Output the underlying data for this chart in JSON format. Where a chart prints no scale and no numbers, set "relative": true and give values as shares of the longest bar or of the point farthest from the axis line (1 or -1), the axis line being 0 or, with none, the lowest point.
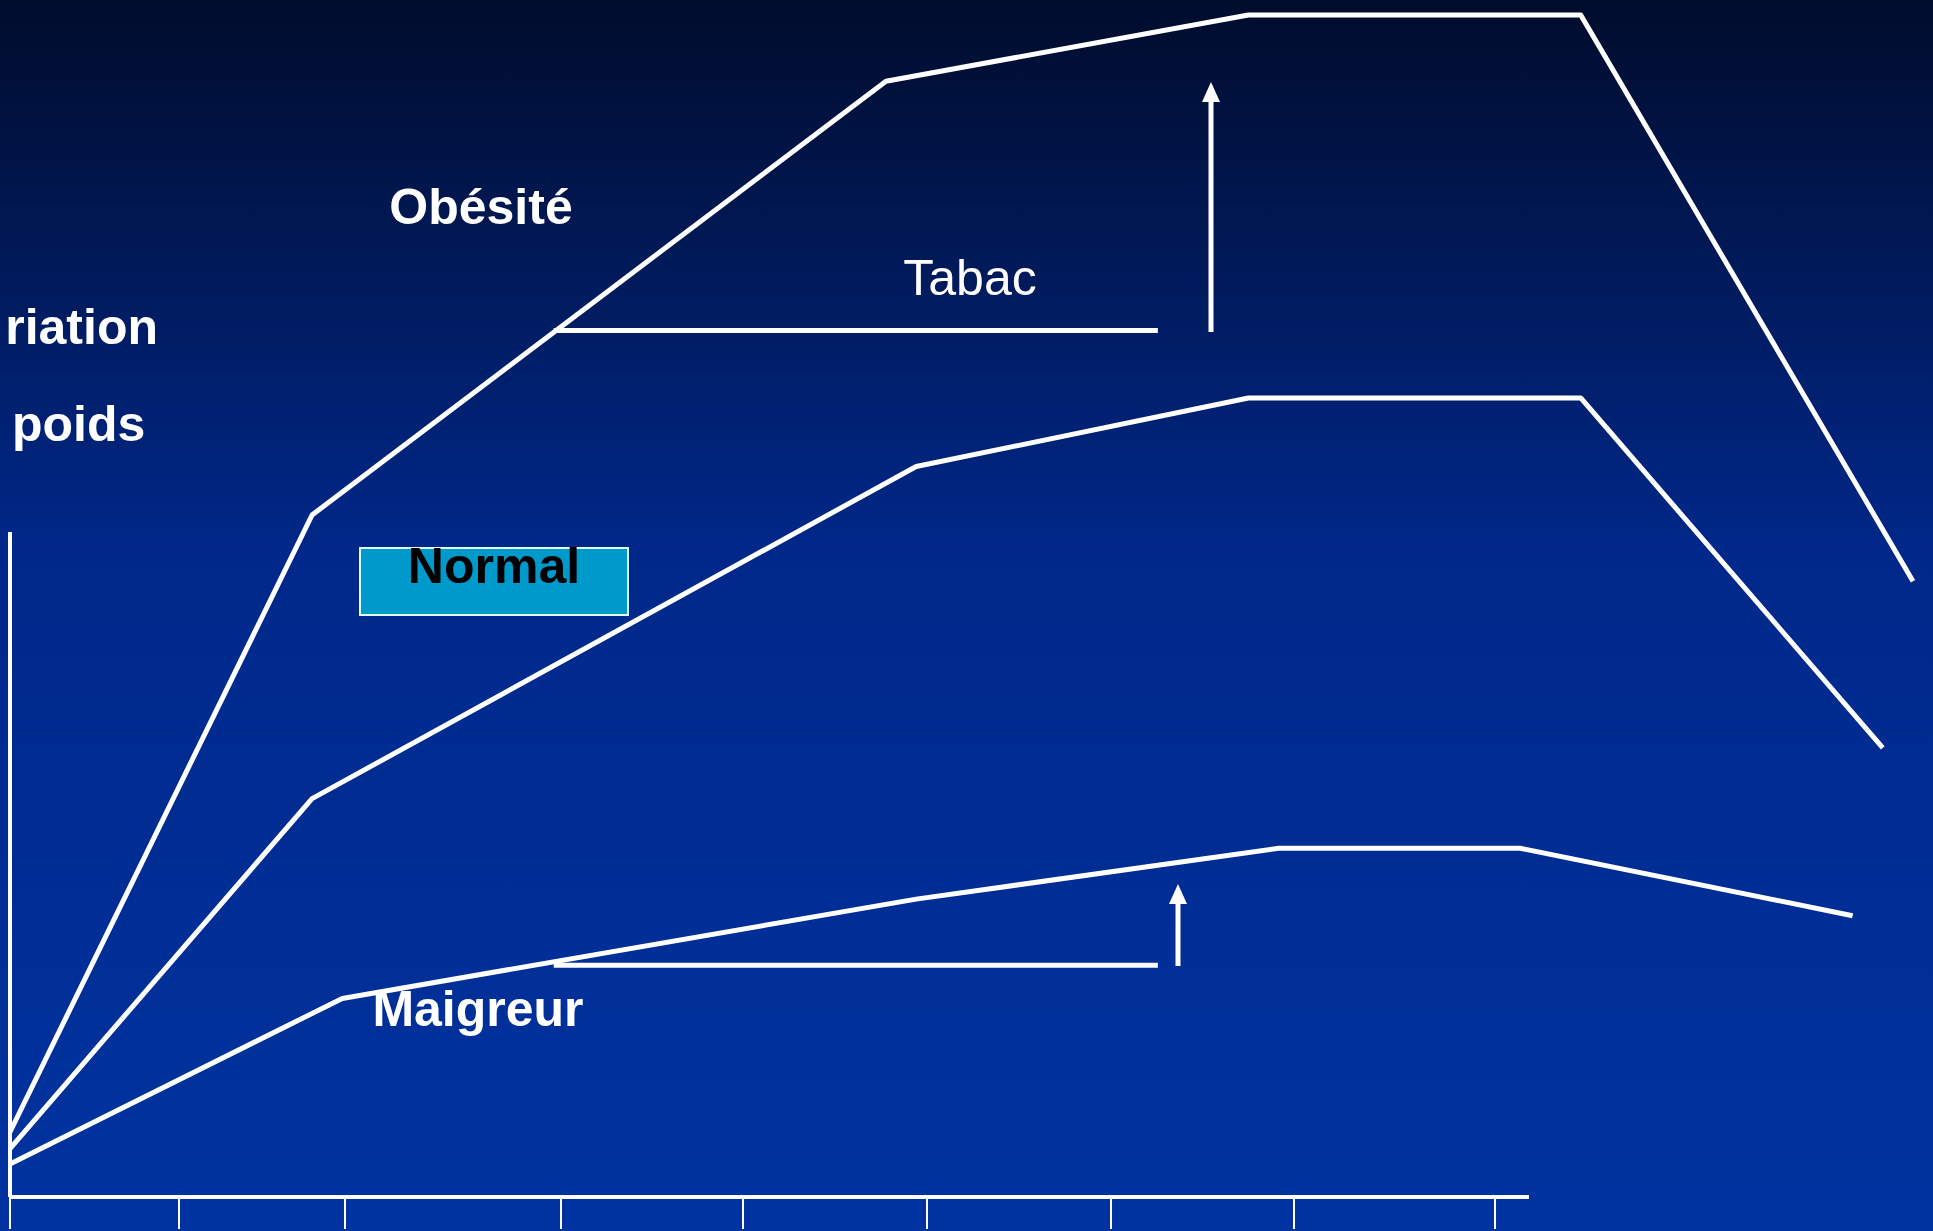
{
  "chart_data": {
    "type": "line",
    "relative": true,
    "ylabel": "riation\npoids",
    "line_style": "solid",
    "categories": [
      null,
      null,
      null,
      null,
      null,
      null,
      null,
      null,
      null,
      null,
      null,
      null,
      null,
      null,
      null,
      null,
      null,
      null,
      null,
      null,
      null,
      null,
      null,
      null,
      null,
      null,
      null,
      null,
      null,
      null,
      null,
      null,
      null,
      null,
      null,
      null,
      null,
      null,
      null,
      null,
      null,
      null,
      null,
      null,
      null,
      null,
      null,
      null,
      null,
      null,
      null,
      null,
      null,
      null,
      null,
      null,
      null,
      null,
      null,
      null,
      null,
      null,
      null,
      null
    ],
    "series": [
      {
        "name": "Obésité",
        "color": "#ffffff",
        "values": [
          0.055,
          null,
          null,
          null,
          null,
          null,
          null,
          null,
          null,
          null,
          0.577,
          null,
          null,
          null,
          null,
          null,
          null,
          null,
          null,
          null,
          null,
          null,
          null,
          null,
          null,
          null,
          null,
          null,
          null,
          0.944,
          null,
          null,
          null,
          null,
          null,
          null,
          null,
          null,
          null,
          null,
          null,
          1,
          null,
          null,
          null,
          null,
          null,
          null,
          null,
          null,
          null,
          null,
          1,
          null,
          null,
          null,
          null,
          null,
          null,
          null,
          null,
          null,
          null,
          0.521
        ]
      },
      {
        "name": "Normal",
        "color": "#ffffff",
        "values": [
          0.041,
          null,
          null,
          null,
          null,
          null,
          null,
          null,
          null,
          null,
          0.337,
          null,
          null,
          null,
          null,
          null,
          null,
          null,
          null,
          null,
          null,
          null,
          null,
          null,
          null,
          null,
          null,
          null,
          null,
          null,
          0.618,
          null,
          null,
          null,
          null,
          null,
          null,
          null,
          null,
          null,
          null,
          0.676,
          null,
          null,
          null,
          null,
          null,
          null,
          null,
          null,
          null,
          null,
          0.676,
          null,
          null,
          null,
          null,
          null,
          null,
          null,
          null,
          null,
          0.38,
          null
        ]
      },
      {
        "name": "Maigreur",
        "color": "#ffffff",
        "values": [
          0.028,
          null,
          null,
          null,
          null,
          null,
          null,
          null,
          null,
          null,
          null,
          0.168,
          null,
          null,
          null,
          null,
          null,
          null,
          null,
          null,
          null,
          null,
          null,
          null,
          null,
          null,
          null,
          null,
          null,
          null,
          0.252,
          null,
          null,
          null,
          null,
          null,
          null,
          null,
          null,
          null,
          null,
          null,
          0.295,
          null,
          null,
          null,
          null,
          null,
          null,
          null,
          0.295,
          null,
          null,
          null,
          null,
          null,
          null,
          null,
          null,
          null,
          null,
          0.238,
          null,
          null
        ]
      },
      {
        "color": "#ffffff",
        "values": [
          null,
          null,
          null,
          null,
          null,
          null,
          null,
          null,
          null,
          null,
          null,
          null,
          null,
          null,
          null,
          null,
          null,
          null,
          0.733,
          null,
          null,
          null,
          null,
          null,
          null,
          null,
          null,
          null,
          null,
          null,
          null,
          null,
          null,
          null,
          null,
          null,
          null,
          null,
          0.733,
          null,
          null,
          null,
          null,
          null,
          null,
          null,
          null,
          null,
          null,
          null,
          null,
          null,
          null,
          null,
          null,
          null,
          null,
          null,
          null,
          null,
          null,
          null,
          null,
          null
        ]
      },
      {
        "color": "#ffffff",
        "values": [
          null,
          null,
          null,
          null,
          null,
          null,
          null,
          null,
          null,
          null,
          null,
          null,
          null,
          null,
          null,
          null,
          null,
          null,
          0.196,
          null,
          null,
          null,
          null,
          null,
          null,
          null,
          null,
          null,
          null,
          null,
          null,
          null,
          null,
          null,
          null,
          null,
          null,
          null,
          0.196,
          null,
          null,
          null,
          null,
          null,
          null,
          null,
          null,
          null,
          null,
          null,
          null,
          null,
          null,
          null,
          null,
          null,
          null,
          null,
          null,
          null,
          null,
          null,
          null,
          null
        ]
      }
    ],
    "annotations": [
      "Tabac"
    ],
    "ref_lines": [
      {
        "axis": "y",
        "value": 0,
        "color": "#ffffff"
      }
    ]
  }
}
